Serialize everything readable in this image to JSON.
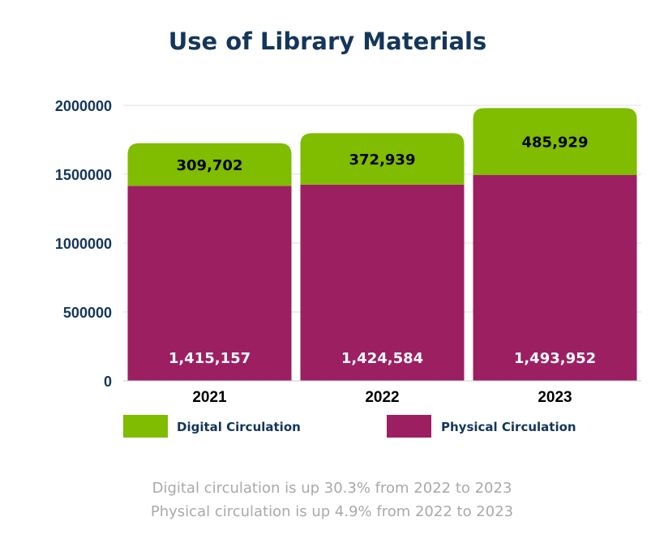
{
  "chart_data": {
    "type": "bar",
    "stacked": true,
    "title": "Use of Library Materials",
    "categories": [
      "2021",
      "2022",
      "2023"
    ],
    "series": [
      {
        "name": "Physical Circulation",
        "color": "#9c1f62",
        "values": [
          1415157,
          1424584,
          1493952
        ],
        "labels": [
          "1,415,157",
          "1,424,584",
          "1,493,952"
        ]
      },
      {
        "name": "Digital Circulation",
        "color": "#80bc00",
        "values": [
          309702,
          372939,
          485929
        ],
        "labels": [
          "309,702",
          "372,939",
          "485,929"
        ]
      }
    ],
    "y_ticks": [
      0,
      500000,
      1000000,
      1500000,
      2000000
    ],
    "y_tick_labels": [
      "0",
      "500000",
      "1000000",
      "1500000",
      "2000000"
    ],
    "ylim": [
      0,
      2000000
    ],
    "grid": true,
    "legend_position": "bottom"
  },
  "notes": [
    "Digital circulation is up 30.3% from 2022 to 2023",
    "Physical circulation is up 4.9% from 2022 to 2023"
  ]
}
